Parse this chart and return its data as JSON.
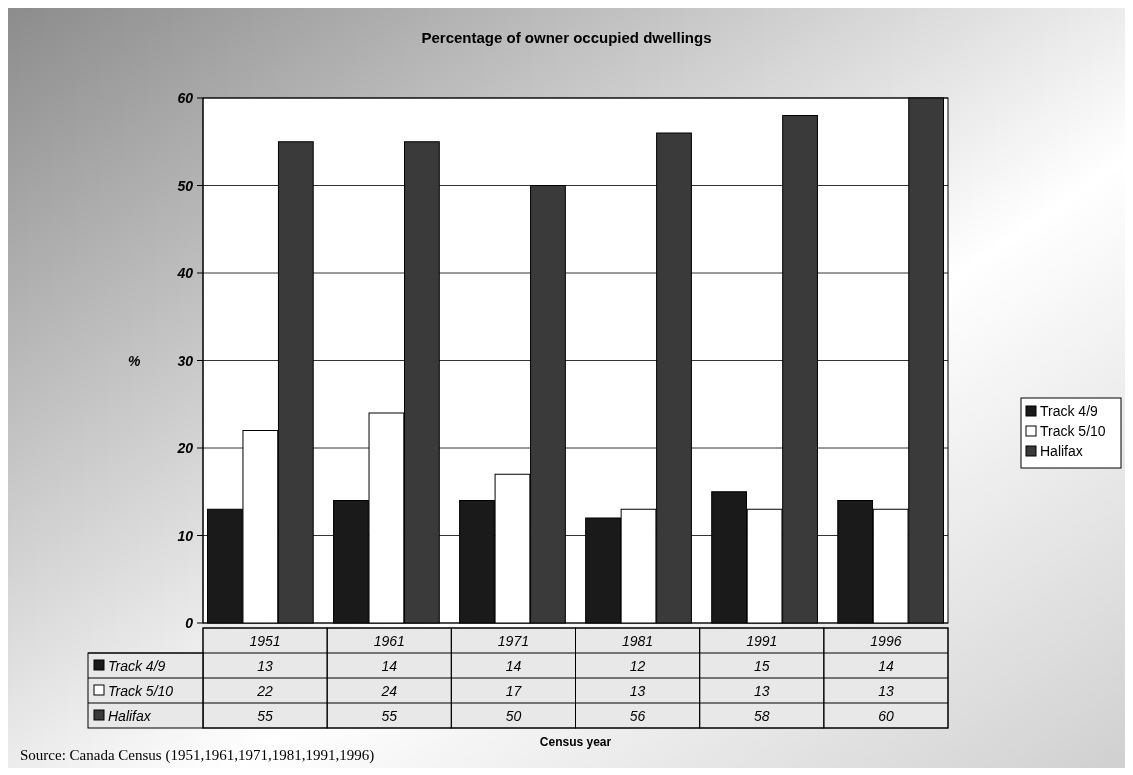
{
  "chart_data": {
    "type": "bar",
    "title": "Percentage of owner occupied dwellings",
    "ylabel": "%",
    "categories": [
      "1951",
      "1961",
      "1971",
      "1981",
      "1991",
      "1996"
    ],
    "series": [
      {
        "name": "Track 4/9",
        "color": "#1a1a1a",
        "values": [
          13,
          14,
          14,
          12,
          15,
          14
        ]
      },
      {
        "name": "Track 5/10",
        "color": "#ffffff",
        "values": [
          22,
          24,
          17,
          13,
          13,
          13
        ]
      },
      {
        "name": "Halifax",
        "color": "#3a3a3a",
        "values": [
          55,
          55,
          50,
          56,
          58,
          60
        ]
      }
    ],
    "ylim": [
      0,
      60
    ],
    "yticks": [
      0,
      10,
      20,
      30,
      40,
      50,
      60
    ],
    "grid": "y",
    "legend": "right",
    "data_labels": true,
    "annotations": [
      "Census year",
      "Source: Canada Census (1951,1961,1971,1981,1991,1996)"
    ]
  }
}
